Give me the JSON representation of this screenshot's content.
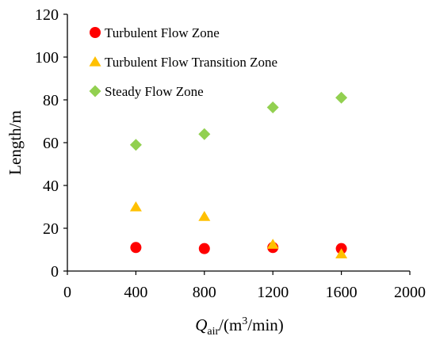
{
  "chart_data": {
    "type": "scatter",
    "xlim": [
      0,
      2000
    ],
    "ylim": [
      0,
      120
    ],
    "x_ticks": [
      0,
      400,
      800,
      1200,
      1600,
      2000
    ],
    "y_ticks": [
      0,
      20,
      40,
      60,
      80,
      100,
      120
    ],
    "grid": false,
    "legend_position": "top-left",
    "ylabel": "Length/m",
    "xlabel": {
      "var": "Q",
      "var_sub": "air",
      "unit_pre": "/(m",
      "unit_sup": "3",
      "unit_post": "/min)"
    },
    "series": [
      {
        "name": "Turbulent Flow Zone",
        "marker": "circle",
        "color": "#ff0000",
        "x": [
          400,
          800,
          1200,
          1600
        ],
        "y": [
          11,
          10.5,
          11,
          10.5
        ]
      },
      {
        "name": "Turbulent Flow Transition Zone",
        "marker": "triangle",
        "color": "#ffc000",
        "x": [
          400,
          800,
          1200,
          1600
        ],
        "y": [
          30,
          25.5,
          12.5,
          8
        ]
      },
      {
        "name": "Steady Flow Zone",
        "marker": "diamond",
        "color": "#92d050",
        "x": [
          400,
          800,
          1200,
          1600
        ],
        "y": [
          59,
          64,
          76.5,
          81
        ]
      }
    ]
  }
}
